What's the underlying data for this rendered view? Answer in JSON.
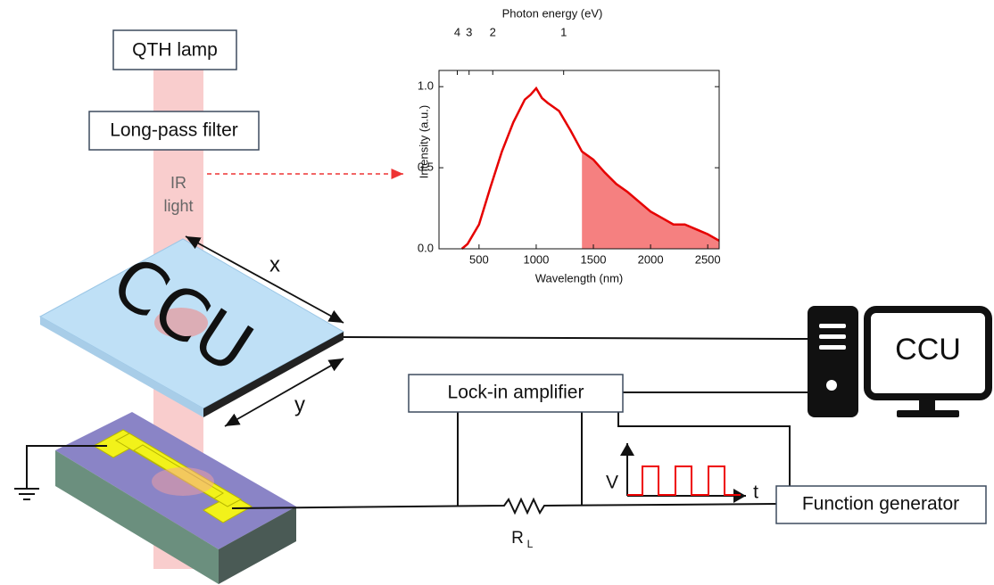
{
  "labels": {
    "lamp": "QTH lamp",
    "filter": "Long-pass filter",
    "ir": "IR",
    "ir2": "light",
    "x": "x",
    "y": "y",
    "lockin": "Lock-in amplifier",
    "funcgen": "Function generator",
    "ccu_monitor": "CCU",
    "ccu_sample": "CCU",
    "rl": "R",
    "rl_sub": "L",
    "v": "V",
    "t": "t"
  },
  "inset": {
    "type": "line",
    "xlabel": "Wavelength (nm)",
    "ylabel": "Intensity (a.u.)",
    "top_label": "Photon energy (eV)",
    "xlim": [
      150,
      2600
    ],
    "ylim": [
      0,
      1.1
    ],
    "xticks": [
      500,
      1000,
      1500,
      2000,
      2500
    ],
    "yticks": [
      {
        "value": 0,
        "label": "0.0"
      },
      {
        "value": 0.5,
        "label": "0.5"
      },
      {
        "value": 1,
        "label": "1.0"
      }
    ],
    "top_ticks": [
      {
        "value": 310,
        "label": "4"
      },
      {
        "value": 413,
        "label": "3"
      },
      {
        "value": 620,
        "label": "2"
      },
      {
        "value": 1240,
        "label": "1"
      }
    ],
    "x": [
      350,
      400,
      500,
      600,
      700,
      800,
      900,
      950,
      1000,
      1050,
      1100,
      1200,
      1300,
      1400,
      1500,
      1600,
      1700,
      1800,
      1900,
      2000,
      2100,
      2200,
      2300,
      2400,
      2500,
      2600
    ],
    "values": [
      0,
      0.03,
      0.15,
      0.38,
      0.6,
      0.78,
      0.92,
      0.95,
      0.99,
      0.93,
      0.9,
      0.85,
      0.73,
      0.6,
      0.55,
      0.47,
      0.4,
      0.35,
      0.29,
      0.23,
      0.19,
      0.15,
      0.15,
      0.12,
      0.09,
      0.05
    ],
    "color": "#e60000",
    "fill_color": "#f58080",
    "fill_from": 1400
  }
}
